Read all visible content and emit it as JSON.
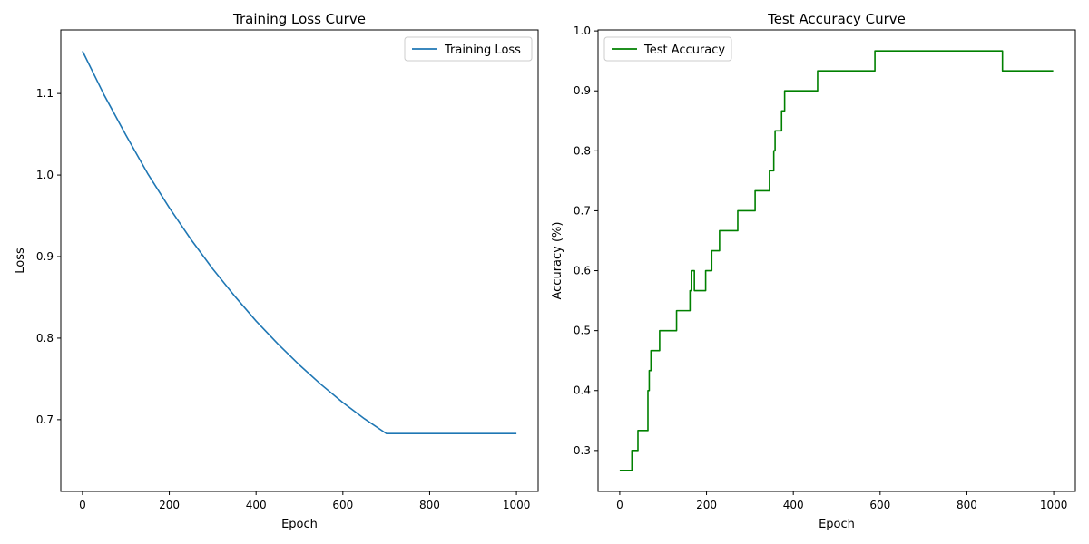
{
  "chart_data": [
    {
      "type": "line",
      "title": "Training Loss Curve",
      "xlabel": "Epoch",
      "ylabel": "Loss",
      "xlim": [
        -50,
        1050
      ],
      "ylim": [
        0.612,
        1.178
      ],
      "xticks": [
        0,
        200,
        400,
        600,
        800,
        1000
      ],
      "xtick_labels": [
        "0",
        "200",
        "400",
        "600",
        "800",
        "1000"
      ],
      "yticks": [
        0.7,
        0.8,
        0.9,
        1.0,
        1.1
      ],
      "ytick_labels": [
        "0.7",
        "0.8",
        "0.9",
        "1.0",
        "1.1"
      ],
      "grid": false,
      "legend_position": "top-right",
      "series": [
        {
          "name": "Training Loss",
          "color": "#1f77b4",
          "x": [
            0,
            50,
            100,
            150,
            200,
            250,
            300,
            350,
            400,
            450,
            500,
            550,
            600,
            650,
            700,
            750,
            800,
            850,
            900,
            950,
            1000
          ],
          "y": [
            1.152,
            1.098,
            1.049,
            1.002,
            0.96,
            0.921,
            0.885,
            0.852,
            0.821,
            0.793,
            0.767,
            0.743,
            0.721,
            0.701,
            0.683,
            0.683,
            0.683,
            0.683,
            0.683,
            0.683,
            0.683
          ]
        }
      ]
    },
    {
      "type": "line",
      "title": "Test Accuracy Curve",
      "xlabel": "Epoch",
      "ylabel": "Accuracy (%)",
      "xlim": [
        -50,
        1050
      ],
      "ylim": [
        0.2317,
        1.0017
      ],
      "xticks": [
        0,
        200,
        400,
        600,
        800,
        1000
      ],
      "xtick_labels": [
        "0",
        "200",
        "400",
        "600",
        "800",
        "1000"
      ],
      "yticks": [
        0.3,
        0.4,
        0.5,
        0.6,
        0.7,
        0.8,
        0.9,
        1.0
      ],
      "ytick_labels": [
        "0.3",
        "0.4",
        "0.5",
        "0.6",
        "0.7",
        "0.8",
        "0.9",
        "1.0"
      ],
      "grid": false,
      "legend_position": "top-left",
      "step": true,
      "series": [
        {
          "name": "Test Accuracy",
          "color": "#008000",
          "x": [
            0,
            28,
            42,
            65,
            68,
            72,
            92,
            131,
            162,
            165,
            172,
            198,
            212,
            230,
            272,
            312,
            345,
            355,
            358,
            373,
            380,
            456,
            588,
            882,
            999
          ],
          "y": [
            0.2667,
            0.3,
            0.3333,
            0.4,
            0.4333,
            0.4667,
            0.5,
            0.5333,
            0.5667,
            0.6,
            0.5667,
            0.6,
            0.6333,
            0.6667,
            0.7,
            0.7333,
            0.7667,
            0.8,
            0.8333,
            0.8667,
            0.9,
            0.9333,
            0.9667,
            0.9333,
            0.9333
          ]
        }
      ]
    }
  ]
}
